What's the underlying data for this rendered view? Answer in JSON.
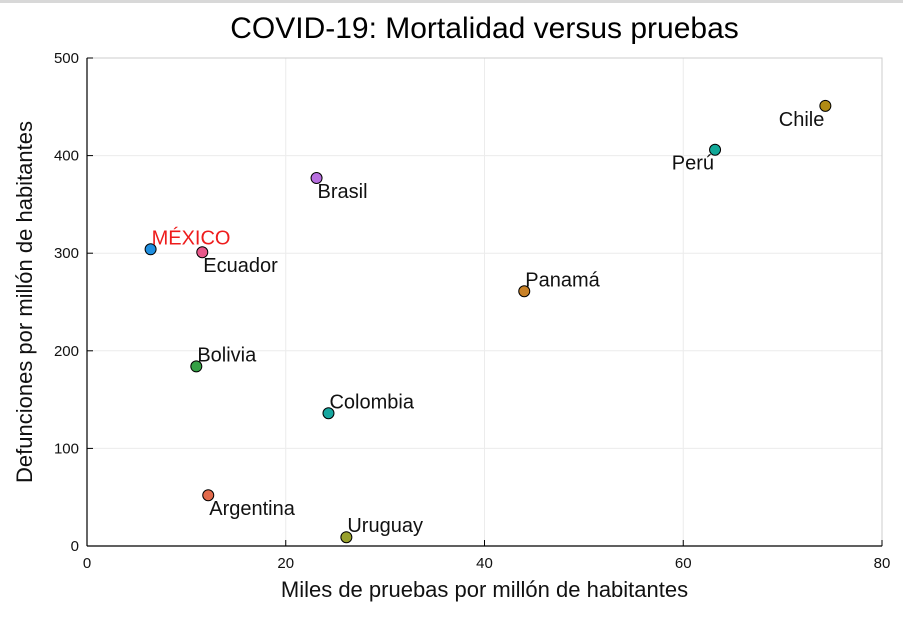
{
  "chart_data": {
    "type": "scatter",
    "title": "COVID-19: Mortalidad versus pruebas",
    "xlabel": "Miles de pruebas por millón de habitantes",
    "ylabel": "Defunciones por millón de habitantes",
    "xlim": [
      0,
      80
    ],
    "ylim": [
      0,
      500
    ],
    "xticks": [
      0,
      20,
      40,
      60,
      80
    ],
    "yticks": [
      0,
      100,
      200,
      300,
      400,
      500
    ],
    "grid": true,
    "legend": "none",
    "points": [
      {
        "label": "MÉXICO",
        "x": 6.4,
        "y": 304,
        "color": "#1f8fe0",
        "label_color": "#ee1c1c",
        "anchor": "start",
        "pos": "above-right"
      },
      {
        "label": "Ecuador",
        "x": 11.6,
        "y": 301,
        "color": "#e8588a",
        "label_color": "#111111",
        "anchor": "start",
        "pos": "below-right"
      },
      {
        "label": "Brasil",
        "x": 23.1,
        "y": 377,
        "color": "#b86fe0",
        "label_color": "#111111",
        "anchor": "start",
        "pos": "below-right"
      },
      {
        "label": "Perú",
        "x": 63.2,
        "y": 406,
        "color": "#11a898",
        "label_color": "#111111",
        "anchor": "end",
        "pos": "below-left"
      },
      {
        "label": "Chile",
        "x": 74.3,
        "y": 451,
        "color": "#b18b14",
        "label_color": "#111111",
        "anchor": "end",
        "pos": "below-left"
      },
      {
        "label": "Panamá",
        "x": 44.0,
        "y": 261,
        "color": "#c88127",
        "label_color": "#111111",
        "anchor": "start",
        "pos": "above-right"
      },
      {
        "label": "Bolivia",
        "x": 11.0,
        "y": 184,
        "color": "#35a046",
        "label_color": "#111111",
        "anchor": "start",
        "pos": "above-right"
      },
      {
        "label": "Colombia",
        "x": 24.3,
        "y": 136,
        "color": "#17a7a0",
        "label_color": "#111111",
        "anchor": "start",
        "pos": "above-right"
      },
      {
        "label": "Argentina",
        "x": 12.2,
        "y": 52,
        "color": "#e26a4c",
        "label_color": "#111111",
        "anchor": "start",
        "pos": "below-right"
      },
      {
        "label": "Uruguay",
        "x": 26.1,
        "y": 9,
        "color": "#98a02c",
        "label_color": "#111111",
        "anchor": "start",
        "pos": "above-right"
      }
    ]
  }
}
